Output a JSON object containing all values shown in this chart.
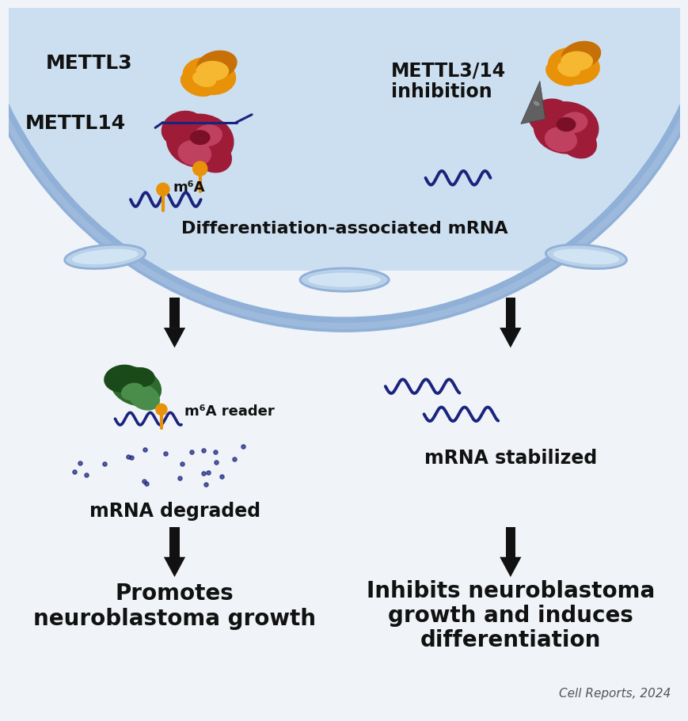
{
  "bg_color": "#ccdff0",
  "cell_fill": "#ccdff0",
  "white_bg": "#f0f4f8",
  "arrow_color": "#111111",
  "mrna_color": "#1a237e",
  "text_color": "#111111",
  "orange_color": "#e8920a",
  "orange_light": "#f5b830",
  "orange_dark": "#c87008",
  "red_protein": "#9e1c38",
  "red_light": "#c04060",
  "red_dark": "#7a1028",
  "green_protein": "#2d6b2d",
  "green_light": "#4a8c4a",
  "green_dark": "#1a4a1a",
  "gray_inhibitor": "#606060",
  "gray_dark": "#404040",
  "dots_color": "#1a237e",
  "cell_outline": "#aac4e0",
  "cell_outline2": "#90b0d8",
  "tab_fill": "#b8d0e8",
  "left_label1": "METTL3",
  "left_label2": "METTL14",
  "right_label1": "METTL3/14",
  "right_label2": "inhibition",
  "center_label": "Differentiation-associated mRNA",
  "m6a_label": "m⁶A",
  "m6a_reader_label": "m⁶A reader",
  "mrna_degraded": "mRNA degraded",
  "mrna_stabilized": "mRNA stabilized",
  "left_bottom1": "Promotes",
  "left_bottom2": "neuroblastoma growth",
  "right_bottom1": "Inhibits neuroblastoma",
  "right_bottom2": "growth and induces",
  "right_bottom3": "differentiation",
  "citation": "Cell Reports, 2024"
}
